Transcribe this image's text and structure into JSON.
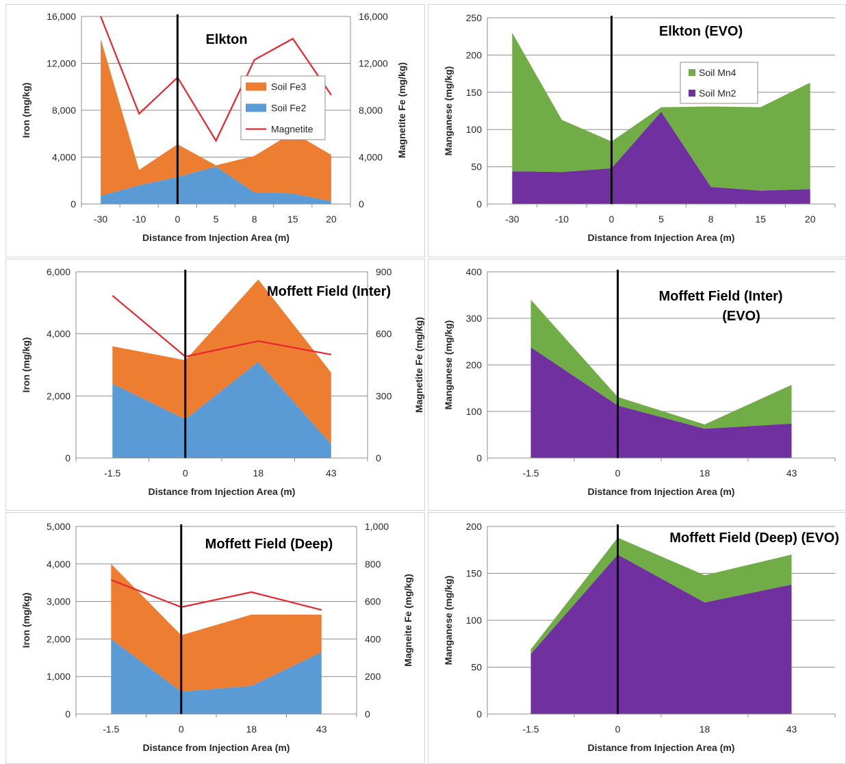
{
  "colors": {
    "fe3": "#ED7D31",
    "fe2": "#5B9BD5",
    "magnetite": "#E8242C",
    "mn4": "#70AD47",
    "mn2": "#7030A0",
    "injection_line": "#000000",
    "grid": "#8c8c8c",
    "axis_text": "#262626"
  },
  "chart_data": [
    {
      "id": "elkton-fe",
      "type": "area",
      "title": "Elkton",
      "xlabel": "Distance from Injection Area (m)",
      "ylabel": "Iron (mg/kg)",
      "y2label": "Magnetite Fe (mg/kg)",
      "categories": [
        "-30",
        "-10",
        "0",
        "5",
        "8",
        "15",
        "20"
      ],
      "ylim": [
        0,
        16000
      ],
      "yticks": [
        "0",
        "4,000",
        "8,000",
        "12,000",
        "16,000"
      ],
      "y2lim": [
        0,
        16000
      ],
      "y2ticks": [
        "0",
        "4,000",
        "8,000",
        "12,000",
        "16,000"
      ],
      "injection_at": "0",
      "legend": {
        "position": "right",
        "items": [
          {
            "label": "Soil Fe3",
            "kind": "area",
            "series": "fe3"
          },
          {
            "label": "Soil Fe2",
            "kind": "area",
            "series": "fe2"
          },
          {
            "label": "Magnetite",
            "kind": "line",
            "series": "magnetite"
          }
        ]
      },
      "series": [
        {
          "name": "Soil Fe2",
          "key": "fe2",
          "stack": "area",
          "values": [
            700,
            1600,
            2300,
            3200,
            1000,
            900,
            250
          ]
        },
        {
          "name": "Soil Fe3",
          "key": "fe3",
          "stack": "area",
          "values": [
            13400,
            1300,
            2800,
            100,
            3100,
            5200,
            3950
          ]
        },
        {
          "name": "Magnetite",
          "key": "magnetite",
          "stack": "line",
          "axis": "y2",
          "values": [
            16000,
            7700,
            10800,
            5400,
            12300,
            14100,
            9300
          ]
        }
      ]
    },
    {
      "id": "elkton-mn",
      "type": "area",
      "title": "Elkton (EVO)",
      "xlabel": "Distance from Injection Area (m)",
      "ylabel": "Manganese (mg/kg)",
      "categories": [
        "-30",
        "-10",
        "0",
        "5",
        "8",
        "15",
        "20"
      ],
      "ylim": [
        0,
        250
      ],
      "yticks": [
        "0",
        "50",
        "100",
        "150",
        "200",
        "250"
      ],
      "injection_at": "0",
      "legend": {
        "position": "right",
        "items": [
          {
            "label": "Soil Mn4",
            "kind": "square",
            "series": "mn4"
          },
          {
            "label": "Soil Mn2",
            "kind": "square",
            "series": "mn2"
          }
        ]
      },
      "series": [
        {
          "name": "Soil Mn2",
          "key": "mn2",
          "stack": "area",
          "values": [
            44,
            43,
            48,
            124,
            23,
            18,
            20
          ]
        },
        {
          "name": "Soil Mn4",
          "key": "mn4",
          "stack": "area",
          "values": [
            186,
            70,
            36,
            6,
            108,
            112,
            143
          ]
        }
      ]
    },
    {
      "id": "moffett-inter-fe",
      "type": "area",
      "title": "Moffett Field (Inter)",
      "xlabel": "Distance from Injection Area (m)",
      "ylabel": "Iron (mg/kg)",
      "y2label": "Magnetite Fe (mg/kg)",
      "categories": [
        "-1.5",
        "0",
        "18",
        "43"
      ],
      "ylim": [
        0,
        6000
      ],
      "yticks": [
        "0",
        "2,000",
        "4,000",
        "6,000"
      ],
      "y2lim": [
        0,
        900
      ],
      "y2ticks": [
        "0",
        "300",
        "600",
        "900"
      ],
      "injection_at": "0",
      "series": [
        {
          "name": "Soil Fe2",
          "key": "fe2",
          "stack": "area",
          "values": [
            2400,
            1250,
            3100,
            450
          ]
        },
        {
          "name": "Soil Fe3",
          "key": "fe3",
          "stack": "area",
          "values": [
            1200,
            1900,
            2650,
            2300
          ]
        },
        {
          "name": "Magnetite",
          "key": "magnetite",
          "stack": "line",
          "axis": "y2",
          "values": [
            785,
            490,
            565,
            500
          ]
        }
      ]
    },
    {
      "id": "moffett-inter-mn",
      "type": "area",
      "title": "Moffett Field (Inter) (EVO)",
      "xlabel": "Distance from Injection Area (m)",
      "ylabel": "Manganese (mg/kg)",
      "categories": [
        "-1.5",
        "0",
        "18",
        "43"
      ],
      "ylim": [
        0,
        400
      ],
      "yticks": [
        "0",
        "100",
        "200",
        "300",
        "400"
      ],
      "injection_at": "0",
      "series": [
        {
          "name": "Soil Mn2",
          "key": "mn2",
          "stack": "area",
          "values": [
            238,
            113,
            63,
            74
          ]
        },
        {
          "name": "Soil Mn4",
          "key": "mn4",
          "stack": "area",
          "values": [
            102,
            18,
            9,
            83
          ]
        }
      ]
    },
    {
      "id": "moffett-deep-fe",
      "type": "area",
      "title": "Moffett Field (Deep)",
      "xlabel": "Distance from Injection Area (m)",
      "ylabel": "Iron (mg/kg)",
      "y2label": "Magneite Fe (mg/kg)",
      "categories": [
        "-1.5",
        "0",
        "18",
        "43"
      ],
      "ylim": [
        0,
        5000
      ],
      "yticks": [
        "0",
        "1,000",
        "2,000",
        "3,000",
        "4,000",
        "5,000"
      ],
      "y2lim": [
        0,
        1000
      ],
      "y2ticks": [
        "0",
        "200",
        "400",
        "600",
        "800",
        "1,000"
      ],
      "injection_at": "0",
      "series": [
        {
          "name": "Soil Fe2",
          "key": "fe2",
          "stack": "area",
          "values": [
            2000,
            600,
            750,
            1650
          ]
        },
        {
          "name": "Soil Fe3",
          "key": "fe3",
          "stack": "area",
          "values": [
            2000,
            1500,
            1900,
            1000
          ]
        },
        {
          "name": "Magnetite",
          "key": "magnetite",
          "stack": "line",
          "axis": "y2",
          "values": [
            715,
            570,
            650,
            555
          ]
        }
      ]
    },
    {
      "id": "moffett-deep-mn",
      "type": "area",
      "title": "Moffett Field (Deep) (EVO)",
      "xlabel": "Distance from Injection Area (m)",
      "ylabel": "Manganese (mg/kg)",
      "categories": [
        "-1.5",
        "0",
        "18",
        "43"
      ],
      "ylim": [
        0,
        200
      ],
      "yticks": [
        "0",
        "50",
        "100",
        "150",
        "200"
      ],
      "injection_at": "0",
      "series": [
        {
          "name": "Soil Mn2",
          "key": "mn2",
          "stack": "area",
          "values": [
            64,
            170,
            119,
            138
          ]
        },
        {
          "name": "Soil Mn4",
          "key": "mn4",
          "stack": "area",
          "values": [
            5,
            18,
            29,
            32
          ]
        }
      ]
    }
  ]
}
